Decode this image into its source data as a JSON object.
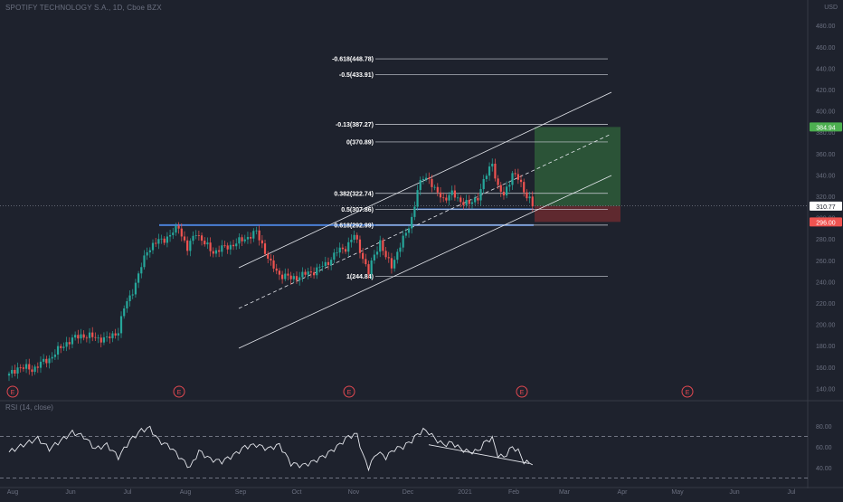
{
  "header": {
    "title": "SPOTIFY TECHNOLOGY S.A., 1D, Cboe BZX",
    "currency": "USD"
  },
  "rsi_header": {
    "title": "RSI (14, close)"
  },
  "colors": {
    "background": "#1e222d",
    "up": "#26a69a",
    "down": "#ef5350",
    "fib_line": "#cfd2da",
    "channel": "#e6e8ee",
    "support": "#4a7fd6",
    "target_zone": "#2e5c3a",
    "stop_zone": "#6b2a30",
    "earnings": "#e04850"
  },
  "chart_data": [
    {
      "type": "candlestick",
      "title": "SPOTIFY TECHNOLOGY S.A., 1D, Cboe BZX",
      "x_tick_labels": [
        "Aug",
        "Jun",
        "Jul",
        "Aug",
        "Sep",
        "Oct",
        "Nov",
        "Dec",
        "2021",
        "Feb",
        "Mar",
        "Apr",
        "May",
        "Jun",
        "Jul"
      ],
      "y_tick_labels": [
        "480.00",
        "460.00",
        "440.00",
        "420.00",
        "400.00",
        "380.00",
        "360.00",
        "340.00",
        "320.00",
        "300.00",
        "280.00",
        "260.00",
        "240.00",
        "220.00",
        "200.00",
        "180.00",
        "160.00",
        "140.00"
      ],
      "ylim": [
        130,
        505
      ],
      "price_tags": [
        {
          "label": "384.94",
          "value": 384.94,
          "color": "#4caf50"
        },
        {
          "label": "310.91",
          "value": 310.91,
          "color": "#434651"
        },
        {
          "label": "310.77",
          "value": 310.77,
          "color": "#ffffff"
        },
        {
          "label": "296.00",
          "value": 296.0,
          "color": "#ef5350"
        }
      ],
      "fib_levels": [
        {
          "ratio": "-0.618",
          "label": "-0.618(448.78)",
          "value": 448.78
        },
        {
          "ratio": "-0.5",
          "label": "-0.5(433.91)",
          "value": 433.91
        },
        {
          "ratio": "-0.13",
          "label": "-0.13(387.27)",
          "value": 387.27
        },
        {
          "ratio": "0",
          "label": "0(370.89)",
          "value": 370.89
        },
        {
          "ratio": "0.382",
          "label": "0.382(322.74)",
          "value": 322.74
        },
        {
          "ratio": "0.5",
          "label": "0.5(307.86)",
          "value": 307.86
        },
        {
          "ratio": "0.618",
          "label": "0.618(292.99)",
          "value": 292.99
        },
        {
          "ratio": "1",
          "label": "1(244.84)",
          "value": 244.84
        }
      ],
      "support_level": 293,
      "target_zone": {
        "top": 384.94,
        "bottom": 310.91
      },
      "stop_zone": {
        "top": 310.91,
        "bottom": 296.0
      },
      "earnings_markers": [
        "E",
        "E",
        "E",
        "E",
        "E"
      ],
      "anchors": [
        {
          "i": 0,
          "v": 152
        },
        {
          "i": 3,
          "v": 160
        },
        {
          "i": 8,
          "v": 158
        },
        {
          "i": 14,
          "v": 168
        },
        {
          "i": 20,
          "v": 183
        },
        {
          "i": 25,
          "v": 190
        },
        {
          "i": 29,
          "v": 188
        },
        {
          "i": 34,
          "v": 186
        },
        {
          "i": 38,
          "v": 194
        },
        {
          "i": 40,
          "v": 215
        },
        {
          "i": 44,
          "v": 238
        },
        {
          "i": 48,
          "v": 270
        },
        {
          "i": 52,
          "v": 278
        },
        {
          "i": 56,
          "v": 283
        },
        {
          "i": 59,
          "v": 292
        },
        {
          "i": 62,
          "v": 270
        },
        {
          "i": 65,
          "v": 287
        },
        {
          "i": 68,
          "v": 275
        },
        {
          "i": 71,
          "v": 268
        },
        {
          "i": 75,
          "v": 272
        },
        {
          "i": 79,
          "v": 276
        },
        {
          "i": 83,
          "v": 282
        },
        {
          "i": 86,
          "v": 286
        },
        {
          "i": 88,
          "v": 275
        },
        {
          "i": 91,
          "v": 256
        },
        {
          "i": 94,
          "v": 247
        },
        {
          "i": 98,
          "v": 243
        },
        {
          "i": 102,
          "v": 246
        },
        {
          "i": 106,
          "v": 250
        },
        {
          "i": 110,
          "v": 256
        },
        {
          "i": 114,
          "v": 268
        },
        {
          "i": 117,
          "v": 272
        },
        {
          "i": 120,
          "v": 283
        },
        {
          "i": 122,
          "v": 270
        },
        {
          "i": 125,
          "v": 248
        },
        {
          "i": 127,
          "v": 265
        },
        {
          "i": 129,
          "v": 278
        },
        {
          "i": 131,
          "v": 262
        },
        {
          "i": 133,
          "v": 255
        },
        {
          "i": 135,
          "v": 268
        },
        {
          "i": 138,
          "v": 285
        },
        {
          "i": 140,
          "v": 300
        },
        {
          "i": 142,
          "v": 325
        },
        {
          "i": 144,
          "v": 338
        },
        {
          "i": 146,
          "v": 337
        },
        {
          "i": 148,
          "v": 325
        },
        {
          "i": 151,
          "v": 318
        },
        {
          "i": 154,
          "v": 322
        },
        {
          "i": 157,
          "v": 316
        },
        {
          "i": 160,
          "v": 312
        },
        {
          "i": 163,
          "v": 320
        },
        {
          "i": 166,
          "v": 340
        },
        {
          "i": 168,
          "v": 352
        },
        {
          "i": 170,
          "v": 328
        },
        {
          "i": 172,
          "v": 320
        },
        {
          "i": 175,
          "v": 342
        },
        {
          "i": 177,
          "v": 336
        },
        {
          "i": 179,
          "v": 325
        },
        {
          "i": 181,
          "v": 318
        },
        {
          "i": 182,
          "v": 311
        }
      ],
      "candle_count": 183
    },
    {
      "type": "line",
      "title": "RSI (14, close)",
      "y_tick_labels": [
        "80.00",
        "60.00",
        "40.00"
      ],
      "ylim": [
        20,
        95
      ],
      "bands": [
        70,
        30
      ],
      "anchors": [
        {
          "i": 0,
          "v": 55
        },
        {
          "i": 5,
          "v": 62
        },
        {
          "i": 10,
          "v": 68
        },
        {
          "i": 14,
          "v": 58
        },
        {
          "i": 18,
          "v": 66
        },
        {
          "i": 22,
          "v": 74
        },
        {
          "i": 26,
          "v": 70
        },
        {
          "i": 30,
          "v": 58
        },
        {
          "i": 34,
          "v": 62
        },
        {
          "i": 38,
          "v": 50
        },
        {
          "i": 42,
          "v": 66
        },
        {
          "i": 46,
          "v": 76
        },
        {
          "i": 49,
          "v": 78
        },
        {
          "i": 52,
          "v": 66
        },
        {
          "i": 56,
          "v": 60
        },
        {
          "i": 60,
          "v": 48
        },
        {
          "i": 63,
          "v": 40
        },
        {
          "i": 66,
          "v": 56
        },
        {
          "i": 70,
          "v": 48
        },
        {
          "i": 74,
          "v": 46
        },
        {
          "i": 78,
          "v": 52
        },
        {
          "i": 82,
          "v": 60
        },
        {
          "i": 86,
          "v": 62
        },
        {
          "i": 90,
          "v": 58
        },
        {
          "i": 94,
          "v": 62
        },
        {
          "i": 98,
          "v": 44
        },
        {
          "i": 102,
          "v": 42
        },
        {
          "i": 106,
          "v": 46
        },
        {
          "i": 110,
          "v": 52
        },
        {
          "i": 114,
          "v": 60
        },
        {
          "i": 118,
          "v": 70
        },
        {
          "i": 121,
          "v": 72
        },
        {
          "i": 123,
          "v": 52
        },
        {
          "i": 125,
          "v": 40
        },
        {
          "i": 128,
          "v": 55
        },
        {
          "i": 131,
          "v": 50
        },
        {
          "i": 134,
          "v": 58
        },
        {
          "i": 137,
          "v": 60
        },
        {
          "i": 140,
          "v": 66
        },
        {
          "i": 142,
          "v": 72
        },
        {
          "i": 144,
          "v": 76
        },
        {
          "i": 146,
          "v": 74
        },
        {
          "i": 148,
          "v": 68
        },
        {
          "i": 151,
          "v": 62
        },
        {
          "i": 154,
          "v": 64
        },
        {
          "i": 157,
          "v": 58
        },
        {
          "i": 160,
          "v": 55
        },
        {
          "i": 163,
          "v": 56
        },
        {
          "i": 166,
          "v": 66
        },
        {
          "i": 168,
          "v": 68
        },
        {
          "i": 170,
          "v": 52
        },
        {
          "i": 172,
          "v": 50
        },
        {
          "i": 175,
          "v": 60
        },
        {
          "i": 177,
          "v": 56
        },
        {
          "i": 179,
          "v": 46
        },
        {
          "i": 181,
          "v": 44
        },
        {
          "i": 182,
          "v": 45
        }
      ]
    }
  ]
}
